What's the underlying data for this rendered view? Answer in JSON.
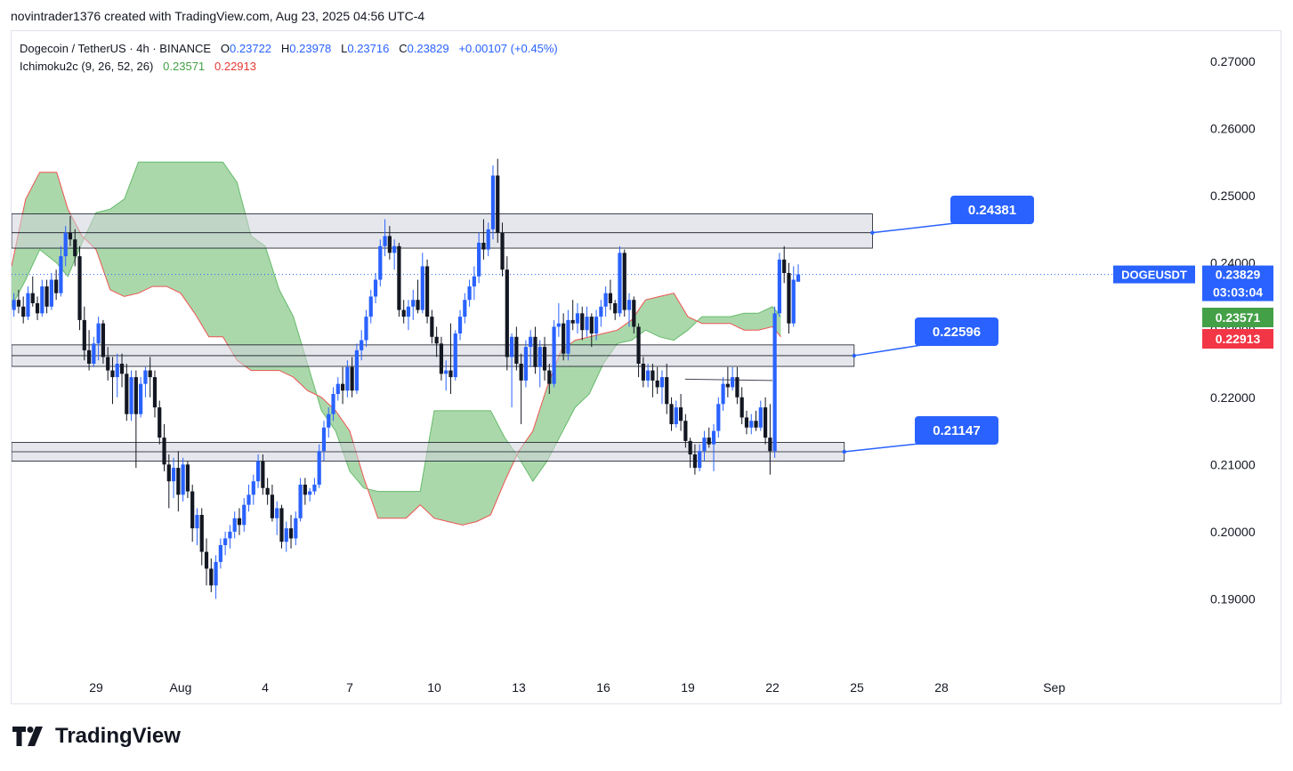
{
  "caption": "novintrader1376 created with TradingView.com, Aug 23, 2025 04:56 UTC-4",
  "legend": {
    "symbol": "Dogecoin / TetherUS · 4h · BINANCE",
    "open_label": "O",
    "open": "0.23722",
    "high_label": "H",
    "high": "0.23978",
    "low_label": "L",
    "low": "0.23716",
    "close_label": "C",
    "close": "0.23829",
    "change": "+0.00107 (+0.45%)",
    "indicator": "Ichimoku2c (9, 26, 52, 26)",
    "indicator_a": "0.23571",
    "indicator_b": "0.22913"
  },
  "brand": "TradingView",
  "colors": {
    "up": "#2962ff",
    "down": "#131722",
    "cloud_fill": "#a5d6a7",
    "cloud_edge_a": "#66bb6a",
    "cloud_edge_b": "#ef5350",
    "zone_fill": "#d1d4dc",
    "label_blue": "#2962ff",
    "tag_green": "#43a047",
    "tag_red": "#f23645"
  },
  "chart_data": {
    "type": "candlestick",
    "symbol_tag": "DOGEUSDT",
    "price_tag": "0.23829",
    "countdown": "03:03:04",
    "tag_a": "0.23571",
    "tag_b": "0.22913",
    "current_price": 0.23829,
    "ylim": [
      0.1845,
      0.2745
    ],
    "y_ticks": [
      "0.27000",
      "0.26000",
      "0.25000",
      "0.24000",
      "0.23000",
      "0.22000",
      "0.21000",
      "0.20000",
      "0.19000"
    ],
    "x_ticks": [
      "29",
      "Aug",
      "4",
      "7",
      "10",
      "13",
      "16",
      "19",
      "22",
      "25",
      "28",
      "Sep"
    ],
    "x_tick_days": [
      29,
      32,
      35,
      38,
      41,
      44,
      47,
      50,
      53,
      56,
      59,
      63
    ],
    "x_range_days": [
      26.0,
      68.0
    ],
    "zones": [
      {
        "low": 0.2422,
        "high": 0.2473,
        "mid": 0.2445,
        "from": 26.0,
        "to": 56.55,
        "label": "0.24381"
      },
      {
        "low": 0.2246,
        "high": 0.2278,
        "mid": 0.2262,
        "from": 26.0,
        "to": 55.9,
        "label": "0.22596"
      },
      {
        "low": 0.2105,
        "high": 0.2133,
        "mid": 0.2119,
        "from": 26.0,
        "to": 55.55,
        "label": "0.21147"
      }
    ],
    "trendline": {
      "from": [
        49.9,
        0.2227
      ],
      "to": [
        53.0,
        0.2225
      ]
    },
    "candles": [
      [
        0.233,
        0.2355,
        0.232,
        0.2345
      ],
      [
        0.2345,
        0.236,
        0.2325,
        0.2335
      ],
      [
        0.2335,
        0.235,
        0.231,
        0.232
      ],
      [
        0.232,
        0.2365,
        0.2315,
        0.2355
      ],
      [
        0.2355,
        0.238,
        0.2335,
        0.234
      ],
      [
        0.234,
        0.235,
        0.2315,
        0.2325
      ],
      [
        0.2325,
        0.2375,
        0.232,
        0.2365
      ],
      [
        0.2365,
        0.2375,
        0.2325,
        0.2335
      ],
      [
        0.2335,
        0.2385,
        0.233,
        0.2375
      ],
      [
        0.2375,
        0.239,
        0.2345,
        0.2355
      ],
      [
        0.2355,
        0.2425,
        0.235,
        0.241
      ],
      [
        0.241,
        0.2455,
        0.2395,
        0.2445
      ],
      [
        0.2445,
        0.247,
        0.2425,
        0.2435
      ],
      [
        0.2435,
        0.245,
        0.2395,
        0.241
      ],
      [
        0.241,
        0.2425,
        0.23,
        0.2315
      ],
      [
        0.2315,
        0.2335,
        0.2255,
        0.227
      ],
      [
        0.227,
        0.23,
        0.224,
        0.225
      ],
      [
        0.225,
        0.229,
        0.2245,
        0.228
      ],
      [
        0.228,
        0.232,
        0.2255,
        0.231
      ],
      [
        0.231,
        0.2315,
        0.225,
        0.226
      ],
      [
        0.226,
        0.2275,
        0.2225,
        0.224
      ],
      [
        0.224,
        0.226,
        0.219,
        0.223
      ],
      [
        0.223,
        0.2265,
        0.22,
        0.225
      ],
      [
        0.225,
        0.2265,
        0.2215,
        0.2235
      ],
      [
        0.2235,
        0.225,
        0.2165,
        0.2175
      ],
      [
        0.2175,
        0.224,
        0.2165,
        0.223
      ],
      [
        0.223,
        0.224,
        0.2095,
        0.2175
      ],
      [
        0.2175,
        0.223,
        0.217,
        0.222
      ],
      [
        0.222,
        0.2245,
        0.22,
        0.224
      ],
      [
        0.224,
        0.226,
        0.22,
        0.223
      ],
      [
        0.223,
        0.224,
        0.217,
        0.2185
      ],
      [
        0.2185,
        0.2195,
        0.213,
        0.214
      ],
      [
        0.214,
        0.216,
        0.209,
        0.21
      ],
      [
        0.21,
        0.2115,
        0.2035,
        0.2075
      ],
      [
        0.2075,
        0.211,
        0.205,
        0.2095
      ],
      [
        0.2095,
        0.212,
        0.203,
        0.2055
      ],
      [
        0.2055,
        0.211,
        0.2045,
        0.21
      ],
      [
        0.21,
        0.2105,
        0.205,
        0.206
      ],
      [
        0.206,
        0.207,
        0.1985,
        0.2005
      ],
      [
        0.2005,
        0.2035,
        0.198,
        0.2025
      ],
      [
        0.2025,
        0.2035,
        0.195,
        0.197
      ],
      [
        0.197,
        0.199,
        0.192,
        0.1945
      ],
      [
        0.1945,
        0.196,
        0.191,
        0.192
      ],
      [
        0.192,
        0.1965,
        0.19,
        0.1955
      ],
      [
        0.1955,
        0.199,
        0.1945,
        0.198
      ],
      [
        0.198,
        0.2,
        0.1965,
        0.199
      ],
      [
        0.199,
        0.201,
        0.1975,
        0.2
      ],
      [
        0.2,
        0.203,
        0.199,
        0.202
      ],
      [
        0.202,
        0.2035,
        0.1995,
        0.201
      ],
      [
        0.201,
        0.205,
        0.2,
        0.204
      ],
      [
        0.204,
        0.207,
        0.203,
        0.2055
      ],
      [
        0.2055,
        0.2085,
        0.204,
        0.2075
      ],
      [
        0.2075,
        0.2115,
        0.2065,
        0.2105
      ],
      [
        0.2105,
        0.2115,
        0.2055,
        0.2065
      ],
      [
        0.2065,
        0.208,
        0.204,
        0.2055
      ],
      [
        0.2055,
        0.207,
        0.2015,
        0.202
      ],
      [
        0.202,
        0.2045,
        0.1995,
        0.2035
      ],
      [
        0.2035,
        0.204,
        0.1975,
        0.1985
      ],
      [
        0.1985,
        0.2015,
        0.197,
        0.2005
      ],
      [
        0.2005,
        0.2025,
        0.1975,
        0.199
      ],
      [
        0.199,
        0.203,
        0.198,
        0.202
      ],
      [
        0.202,
        0.208,
        0.2015,
        0.207
      ],
      [
        0.207,
        0.208,
        0.204,
        0.2055
      ],
      [
        0.2055,
        0.2065,
        0.2045,
        0.206
      ],
      [
        0.206,
        0.208,
        0.2055,
        0.207
      ],
      [
        0.207,
        0.213,
        0.2065,
        0.212
      ],
      [
        0.212,
        0.2165,
        0.2105,
        0.2155
      ],
      [
        0.2155,
        0.2185,
        0.214,
        0.2175
      ],
      [
        0.2175,
        0.2215,
        0.2165,
        0.2205
      ],
      [
        0.2205,
        0.223,
        0.2195,
        0.222
      ],
      [
        0.222,
        0.2245,
        0.219,
        0.221
      ],
      [
        0.221,
        0.2255,
        0.22,
        0.2245
      ],
      [
        0.2245,
        0.226,
        0.22,
        0.221
      ],
      [
        0.221,
        0.228,
        0.2205,
        0.227
      ],
      [
        0.227,
        0.23,
        0.2255,
        0.2285
      ],
      [
        0.2285,
        0.233,
        0.2275,
        0.232
      ],
      [
        0.232,
        0.236,
        0.231,
        0.235
      ],
      [
        0.235,
        0.2385,
        0.234,
        0.2375
      ],
      [
        0.2375,
        0.2435,
        0.2365,
        0.2425
      ],
      [
        0.2425,
        0.2465,
        0.241,
        0.244
      ],
      [
        0.244,
        0.2455,
        0.2405,
        0.2415
      ],
      [
        0.2415,
        0.2435,
        0.239,
        0.2425
      ],
      [
        0.2425,
        0.243,
        0.232,
        0.233
      ],
      [
        0.233,
        0.2345,
        0.231,
        0.232
      ],
      [
        0.232,
        0.2345,
        0.23,
        0.2335
      ],
      [
        0.2335,
        0.236,
        0.2315,
        0.2345
      ],
      [
        0.2345,
        0.2375,
        0.2325,
        0.233
      ],
      [
        0.233,
        0.2415,
        0.2325,
        0.2395
      ],
      [
        0.2395,
        0.2405,
        0.231,
        0.232
      ],
      [
        0.232,
        0.233,
        0.228,
        0.229
      ],
      [
        0.229,
        0.2305,
        0.226,
        0.228
      ],
      [
        0.228,
        0.229,
        0.2225,
        0.2235
      ],
      [
        0.2235,
        0.2255,
        0.221,
        0.224
      ],
      [
        0.224,
        0.231,
        0.2205,
        0.223
      ],
      [
        0.223,
        0.23,
        0.2225,
        0.2295
      ],
      [
        0.2295,
        0.233,
        0.2285,
        0.232
      ],
      [
        0.232,
        0.2355,
        0.231,
        0.2345
      ],
      [
        0.2345,
        0.2375,
        0.2335,
        0.2365
      ],
      [
        0.2365,
        0.2395,
        0.2345,
        0.238
      ],
      [
        0.238,
        0.2445,
        0.237,
        0.243
      ],
      [
        0.243,
        0.2465,
        0.2405,
        0.242
      ],
      [
        0.242,
        0.246,
        0.241,
        0.245
      ],
      [
        0.245,
        0.2545,
        0.2435,
        0.253
      ],
      [
        0.253,
        0.2555,
        0.243,
        0.2445
      ],
      [
        0.2445,
        0.246,
        0.238,
        0.239
      ],
      [
        0.239,
        0.241,
        0.224,
        0.226
      ],
      [
        0.226,
        0.2295,
        0.2185,
        0.229
      ],
      [
        0.229,
        0.2305,
        0.224,
        0.225
      ],
      [
        0.225,
        0.2265,
        0.216,
        0.2225
      ],
      [
        0.2225,
        0.2285,
        0.2215,
        0.2275
      ],
      [
        0.2275,
        0.23,
        0.2245,
        0.229
      ],
      [
        0.229,
        0.2305,
        0.2235,
        0.2245
      ],
      [
        0.2245,
        0.2285,
        0.2215,
        0.2275
      ],
      [
        0.2275,
        0.229,
        0.2225,
        0.224
      ],
      [
        0.224,
        0.225,
        0.2205,
        0.222
      ],
      [
        0.222,
        0.2315,
        0.2215,
        0.2305
      ],
      [
        0.2305,
        0.234,
        0.229,
        0.231
      ],
      [
        0.231,
        0.2325,
        0.2255,
        0.2265
      ],
      [
        0.2265,
        0.233,
        0.2255,
        0.2315
      ],
      [
        0.2315,
        0.2345,
        0.23,
        0.231
      ],
      [
        0.231,
        0.234,
        0.2295,
        0.2325
      ],
      [
        0.2325,
        0.2335,
        0.2285,
        0.23
      ],
      [
        0.23,
        0.2335,
        0.229,
        0.232
      ],
      [
        0.232,
        0.2325,
        0.2275,
        0.2295
      ],
      [
        0.2295,
        0.233,
        0.2285,
        0.232
      ],
      [
        0.232,
        0.2345,
        0.2305,
        0.2335
      ],
      [
        0.2335,
        0.2365,
        0.232,
        0.2355
      ],
      [
        0.2355,
        0.2375,
        0.233,
        0.234
      ],
      [
        0.234,
        0.2345,
        0.2315,
        0.2325
      ],
      [
        0.2325,
        0.2425,
        0.232,
        0.2415
      ],
      [
        0.2415,
        0.242,
        0.232,
        0.233
      ],
      [
        0.233,
        0.2355,
        0.2305,
        0.2345
      ],
      [
        0.2345,
        0.235,
        0.2295,
        0.2305
      ],
      [
        0.2305,
        0.231,
        0.223,
        0.225
      ],
      [
        0.225,
        0.226,
        0.2215,
        0.2225
      ],
      [
        0.2225,
        0.225,
        0.2215,
        0.224
      ],
      [
        0.224,
        0.225,
        0.22,
        0.2225
      ],
      [
        0.2225,
        0.2245,
        0.2205,
        0.2215
      ],
      [
        0.2215,
        0.224,
        0.219,
        0.223
      ],
      [
        0.223,
        0.225,
        0.2175,
        0.219
      ],
      [
        0.219,
        0.22,
        0.215,
        0.216
      ],
      [
        0.216,
        0.2195,
        0.2155,
        0.2185
      ],
      [
        0.2185,
        0.2205,
        0.215,
        0.2165
      ],
      [
        0.2165,
        0.2175,
        0.2125,
        0.2135
      ],
      [
        0.2135,
        0.214,
        0.2095,
        0.2115
      ],
      [
        0.2115,
        0.213,
        0.2085,
        0.2095
      ],
      [
        0.2095,
        0.213,
        0.209,
        0.212
      ],
      [
        0.212,
        0.215,
        0.2105,
        0.214
      ],
      [
        0.214,
        0.2155,
        0.2125,
        0.213
      ],
      [
        0.213,
        0.216,
        0.209,
        0.215
      ],
      [
        0.215,
        0.22,
        0.214,
        0.219
      ],
      [
        0.219,
        0.223,
        0.218,
        0.222
      ],
      [
        0.222,
        0.2245,
        0.22,
        0.2215
      ],
      [
        0.2215,
        0.2245,
        0.221,
        0.223
      ],
      [
        0.223,
        0.2245,
        0.219,
        0.22
      ],
      [
        0.22,
        0.2215,
        0.216,
        0.217
      ],
      [
        0.217,
        0.218,
        0.2145,
        0.2155
      ],
      [
        0.2155,
        0.2175,
        0.2145,
        0.2165
      ],
      [
        0.2165,
        0.218,
        0.215,
        0.2155
      ],
      [
        0.2155,
        0.2195,
        0.215,
        0.2185
      ],
      [
        0.2185,
        0.22,
        0.213,
        0.214
      ],
      [
        0.214,
        0.219,
        0.2085,
        0.212
      ],
      [
        0.212,
        0.2335,
        0.211,
        0.2325
      ],
      [
        0.2325,
        0.2415,
        0.232,
        0.2405
      ],
      [
        0.2405,
        0.2425,
        0.237,
        0.2385
      ],
      [
        0.2385,
        0.24,
        0.2295,
        0.231
      ],
      [
        0.231,
        0.2395,
        0.2305,
        0.2375
      ],
      [
        0.2372,
        0.2398,
        0.2372,
        0.2383
      ]
    ],
    "cloud": {
      "x": [
        26.0,
        26.5,
        27.0,
        27.6,
        28.0,
        28.5,
        29.0,
        29.5,
        30.0,
        30.5,
        31.0,
        31.5,
        32.0,
        32.5,
        33.0,
        33.5,
        34.0,
        34.5,
        35.0,
        35.5,
        36.0,
        36.5,
        37.0,
        37.5,
        38.0,
        38.5,
        39.0,
        39.5,
        40.0,
        40.5,
        41.0,
        41.5,
        42.0,
        42.5,
        43.0,
        43.5,
        44.0,
        44.5,
        45.0,
        45.5,
        46.0,
        46.5,
        47.0,
        47.5,
        48.0,
        48.5,
        49.0,
        49.5,
        50.0,
        50.5,
        51.0,
        51.5,
        52.0,
        52.5,
        53.0,
        53.3
      ],
      "span_a": [
        0.2335,
        0.2375,
        0.242,
        0.24,
        0.238,
        0.243,
        0.2475,
        0.248,
        0.2495,
        0.255,
        0.255,
        0.255,
        0.255,
        0.255,
        0.255,
        0.255,
        0.252,
        0.244,
        0.2425,
        0.236,
        0.232,
        0.225,
        0.218,
        0.215,
        0.209,
        0.2065,
        0.206,
        0.206,
        0.206,
        0.206,
        0.218,
        0.218,
        0.218,
        0.218,
        0.218,
        0.214,
        0.211,
        0.2075,
        0.2105,
        0.2145,
        0.2185,
        0.2205,
        0.225,
        0.228,
        0.2285,
        0.23,
        0.229,
        0.2285,
        0.23,
        0.232,
        0.232,
        0.232,
        0.2325,
        0.2325,
        0.2335,
        0.232
      ],
      "span_b": [
        0.2395,
        0.2495,
        0.2535,
        0.2535,
        0.248,
        0.244,
        0.242,
        0.236,
        0.235,
        0.2355,
        0.2365,
        0.2365,
        0.2355,
        0.2325,
        0.229,
        0.229,
        0.2255,
        0.224,
        0.224,
        0.224,
        0.223,
        0.221,
        0.22,
        0.218,
        0.215,
        0.208,
        0.202,
        0.202,
        0.202,
        0.204,
        0.202,
        0.2015,
        0.201,
        0.2015,
        0.2025,
        0.2075,
        0.212,
        0.215,
        0.2215,
        0.227,
        0.2285,
        0.229,
        0.2295,
        0.23,
        0.2315,
        0.2345,
        0.235,
        0.2355,
        0.232,
        0.231,
        0.231,
        0.231,
        0.23,
        0.23,
        0.2305,
        0.229
      ]
    }
  }
}
